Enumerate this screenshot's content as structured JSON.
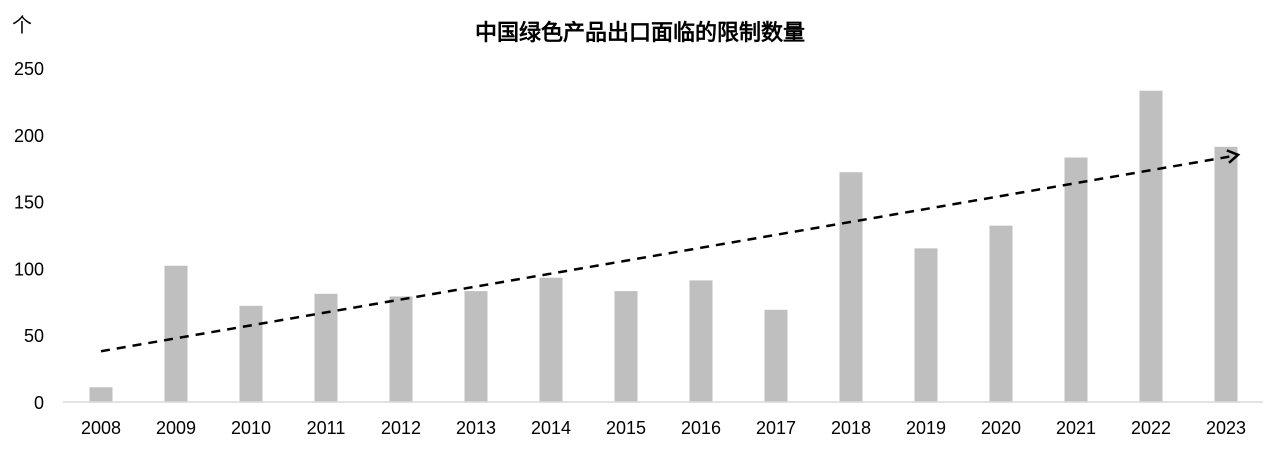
{
  "chart_data": {
    "type": "bar",
    "title": "中国绿色产品出口面临的限制数量",
    "ylabel": "个",
    "xlabel": "",
    "ylim": [
      0,
      250
    ],
    "yticks": [
      0,
      50,
      100,
      150,
      200,
      250
    ],
    "grid": false,
    "legend": "none",
    "bar_color": "#bfbfbf",
    "categories": [
      "2008",
      "2009",
      "2010",
      "2011",
      "2012",
      "2013",
      "2014",
      "2015",
      "2016",
      "2017",
      "2018",
      "2019",
      "2020",
      "2021",
      "2022",
      "2023"
    ],
    "values": [
      11,
      102,
      72,
      81,
      79,
      83,
      93,
      83,
      91,
      69,
      172,
      115,
      132,
      183,
      233,
      191
    ],
    "trend_arrow": {
      "style": "dashed",
      "color": "#000000",
      "from": {
        "x": "2008",
        "y": 38
      },
      "to": {
        "x": "2023",
        "y": 185
      }
    }
  }
}
